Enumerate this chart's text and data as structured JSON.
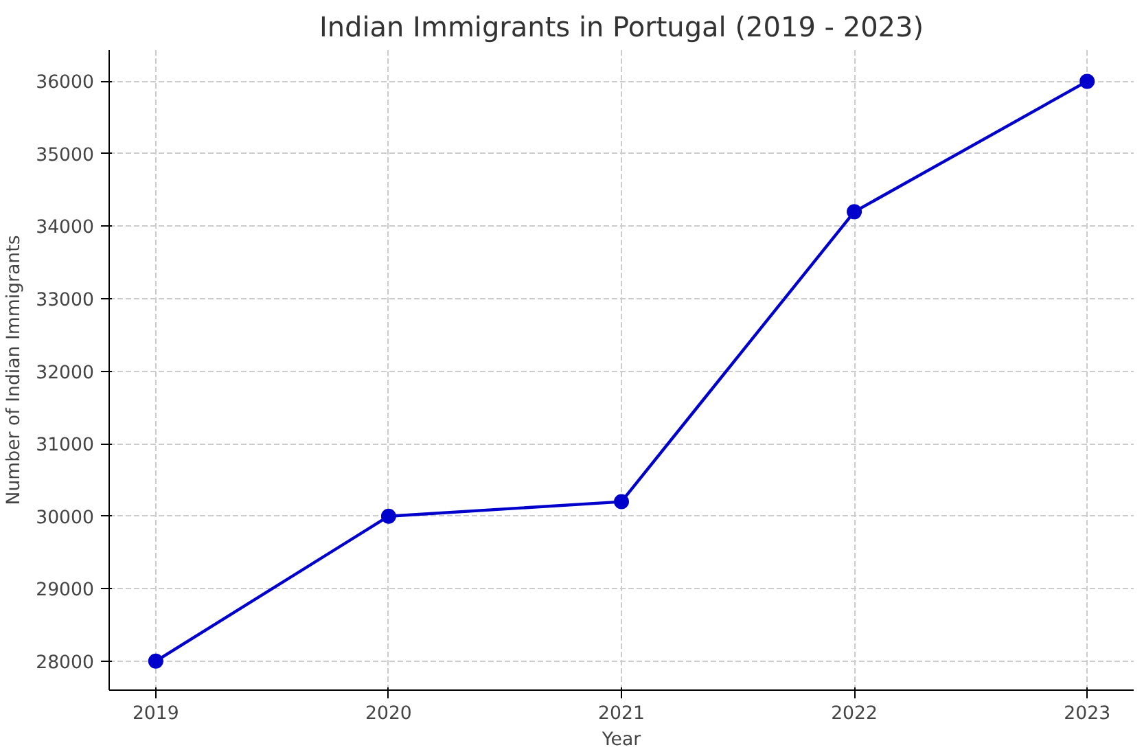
{
  "chart_data": {
    "type": "line",
    "title": "Indian Immigrants in Portugal (2019 - 2023)",
    "xlabel": "Year",
    "ylabel": "Number of Indian Immigrants",
    "x": [
      2019,
      2020,
      2021,
      2022,
      2023
    ],
    "series": [
      {
        "color": "#0000cc",
        "values": [
          28000,
          30000,
          30200,
          34200,
          36000
        ]
      }
    ],
    "xlim": [
      2018.8,
      2023.2
    ],
    "xticks": [
      2019,
      2020,
      2021,
      2022,
      2023
    ],
    "ylim": [
      27600,
      36430
    ],
    "yticks": [
      28000,
      29000,
      30000,
      31000,
      32000,
      33000,
      34000,
      35000,
      36000
    ],
    "grid": true,
    "marker": "circle",
    "line_style": "solid"
  }
}
